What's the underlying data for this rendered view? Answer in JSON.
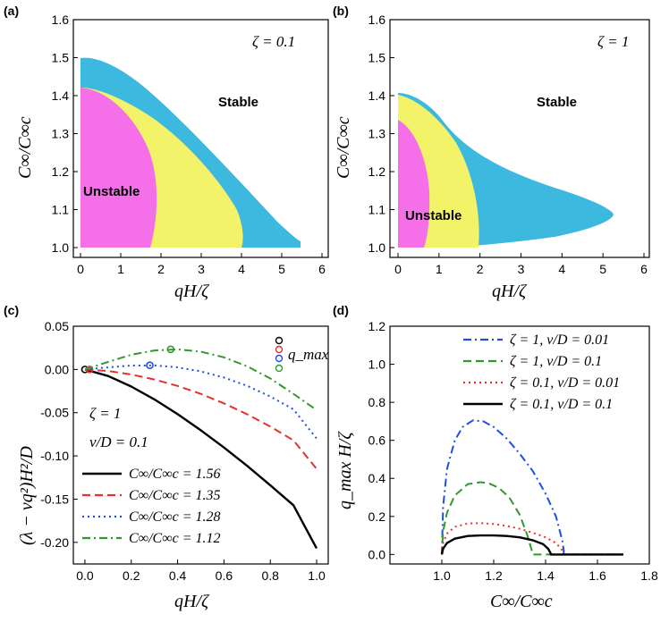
{
  "chart_data": [
    {
      "type": "area",
      "panel_label": "(a)",
      "xlabel": "qH/ζ",
      "ylabel": "C∞/C∞c",
      "xlim": [
        0,
        6
      ],
      "ylim": [
        1.0,
        1.6
      ],
      "xticks": [
        "0",
        "1",
        "2",
        "3",
        "4",
        "5",
        "6"
      ],
      "yticks": [
        "1.0",
        "1.1",
        "1.2",
        "1.3",
        "1.4",
        "1.5",
        "1.6"
      ],
      "annotation": "ζ = 0.1",
      "regions": [
        {
          "name": "outer",
          "color": "#3db8df",
          "top": 1.5,
          "x_max": 5.4
        },
        {
          "name": "middle",
          "color": "#f3f36a",
          "top": 1.42,
          "x_max": 4.0
        },
        {
          "name": "inner",
          "color": "#f46fe8",
          "top": 1.42,
          "x_max": 1.8
        }
      ],
      "region_labels": {
        "stable": "Stable",
        "unstable": "Unstable"
      }
    },
    {
      "type": "area",
      "panel_label": "(b)",
      "xlabel": "qH/ζ",
      "ylabel": "C∞/C∞c",
      "xlim": [
        0,
        6
      ],
      "ylim": [
        1.0,
        1.6
      ],
      "xticks": [
        "0",
        "1",
        "2",
        "3",
        "4",
        "5",
        "6"
      ],
      "yticks": [
        "1.0",
        "1.1",
        "1.2",
        "1.3",
        "1.4",
        "1.5",
        "1.6"
      ],
      "annotation": "ζ = 1",
      "regions": [
        {
          "name": "outer",
          "color": "#3db8df",
          "top": 1.41,
          "x_max": 5.25
        },
        {
          "name": "middle",
          "color": "#f3f36a",
          "top": 1.4,
          "x_max": 1.9
        },
        {
          "name": "inner",
          "color": "#f46fe8",
          "top": 1.34,
          "x_max": 0.7
        }
      ],
      "region_labels": {
        "stable": "Stable",
        "unstable": "Unstable"
      }
    },
    {
      "type": "line",
      "panel_label": "(c)",
      "xlabel": "qH/ζ",
      "ylabel": "(λ − νq²)H²/D",
      "xlim": [
        -0.05,
        1.05
      ],
      "ylim": [
        -0.225,
        0.05
      ],
      "xticks": [
        "0.0",
        "0.2",
        "0.4",
        "0.6",
        "0.8",
        "1.0"
      ],
      "yticks": [
        "0.05",
        "0.00",
        "-0.05",
        "-0.10",
        "-0.15",
        "-0.20"
      ],
      "annotations": [
        "ζ = 1",
        "ν/D = 0.1"
      ],
      "marker_label": "q_max",
      "series": [
        {
          "name": "C∞/C∞c = 1.56",
          "color": "#000000",
          "style": "solid",
          "x": [
            0,
            0.1,
            0.2,
            0.3,
            0.4,
            0.5,
            0.6,
            0.7,
            0.8,
            0.9,
            1.0
          ],
          "y": [
            0,
            -0.0076,
            -0.0198,
            -0.0347,
            -0.0517,
            -0.0703,
            -0.0903,
            -0.1115,
            -0.1339,
            -0.1571,
            -0.207
          ],
          "qmax": [
            0,
            0
          ]
        },
        {
          "name": "C∞/C∞c = 1.35",
          "color": "#e8302a",
          "style": "dash",
          "x": [
            0,
            0.1,
            0.2,
            0.3,
            0.4,
            0.5,
            0.6,
            0.7,
            0.8,
            0.9,
            1.0
          ],
          "y": [
            0,
            -0.0018,
            -0.0058,
            -0.0116,
            -0.0191,
            -0.0283,
            -0.0392,
            -0.0518,
            -0.0661,
            -0.082,
            -0.115
          ],
          "qmax": [
            0.02,
            0
          ]
        },
        {
          "name": "C∞/C∞c = 1.28",
          "color": "#1f4fe0",
          "style": "dot",
          "x": [
            0,
            0.1,
            0.2,
            0.3,
            0.4,
            0.5,
            0.6,
            0.7,
            0.8,
            0.9,
            1.0
          ],
          "y": [
            0,
            0.0024,
            0.0045,
            0.0046,
            0.0024,
            -0.0022,
            -0.0093,
            -0.019,
            -0.0313,
            -0.0461,
            -0.08
          ],
          "qmax": [
            0.28,
            0.0048
          ]
        },
        {
          "name": "C∞/C∞c = 1.12",
          "color": "#2e9a2e",
          "style": "dashdot",
          "x": [
            0,
            0.1,
            0.2,
            0.3,
            0.4,
            0.5,
            0.6,
            0.7,
            0.8,
            0.9,
            1.0
          ],
          "y": [
            0,
            0.0087,
            0.017,
            0.022,
            0.0232,
            0.0205,
            0.014,
            0.0037,
            -0.0104,
            -0.0283,
            -0.047
          ],
          "qmax": [
            0.37,
            0.0233
          ]
        }
      ]
    },
    {
      "type": "line",
      "panel_label": "(d)",
      "xlabel": "C∞/C∞c",
      "ylabel": "q_max H/ζ",
      "xlim": [
        0.8,
        1.8
      ],
      "ylim": [
        -0.05,
        1.2
      ],
      "xticks": [
        "1.0",
        "1.2",
        "1.4",
        "1.6",
        "1.8"
      ],
      "yticks": [
        "0.0",
        "0.2",
        "0.4",
        "0.6",
        "0.8",
        "1.0",
        "1.2"
      ],
      "series": [
        {
          "name": "ζ = 1, ν/D = 0.01",
          "color": "#1f4fe0",
          "style": "dashdot",
          "x": [
            1.0,
            1.005,
            1.02,
            1.05,
            1.08,
            1.12,
            1.16,
            1.2,
            1.25,
            1.3,
            1.35,
            1.4,
            1.44,
            1.465,
            1.47,
            1.47,
            1.7
          ],
          "y": [
            0,
            0.25,
            0.45,
            0.6,
            0.67,
            0.705,
            0.7,
            0.67,
            0.61,
            0.53,
            0.44,
            0.32,
            0.2,
            0.07,
            0.02,
            0,
            0
          ]
        },
        {
          "name": "ζ = 1, ν/D = 0.1",
          "color": "#2e9a2e",
          "style": "dash",
          "x": [
            1.0,
            1.005,
            1.02,
            1.05,
            1.1,
            1.15,
            1.18,
            1.22,
            1.26,
            1.3,
            1.33,
            1.345,
            1.35,
            1.35,
            1.7
          ],
          "y": [
            0,
            0.12,
            0.22,
            0.31,
            0.37,
            0.38,
            0.375,
            0.35,
            0.3,
            0.21,
            0.1,
            0.03,
            0.005,
            0,
            0
          ]
        },
        {
          "name": "ζ = 0.1, ν/D = 0.01",
          "color": "#e8302a",
          "style": "dot",
          "x": [
            1.0,
            1.005,
            1.02,
            1.05,
            1.1,
            1.15,
            1.2,
            1.25,
            1.3,
            1.35,
            1.4,
            1.44,
            1.46,
            1.47,
            1.47,
            1.7
          ],
          "y": [
            0,
            0.06,
            0.11,
            0.145,
            0.163,
            0.165,
            0.16,
            0.15,
            0.135,
            0.115,
            0.09,
            0.06,
            0.03,
            0.008,
            0,
            0
          ]
        },
        {
          "name": "ζ = 0.1, ν/D = 0.1",
          "color": "#000000",
          "style": "solid",
          "x": [
            1.0,
            1.005,
            1.02,
            1.05,
            1.1,
            1.15,
            1.2,
            1.25,
            1.3,
            1.35,
            1.39,
            1.41,
            1.42,
            1.42,
            1.7
          ],
          "y": [
            0,
            0.03,
            0.06,
            0.083,
            0.097,
            0.1,
            0.1,
            0.097,
            0.09,
            0.075,
            0.055,
            0.03,
            0.005,
            0,
            0
          ]
        }
      ]
    }
  ]
}
